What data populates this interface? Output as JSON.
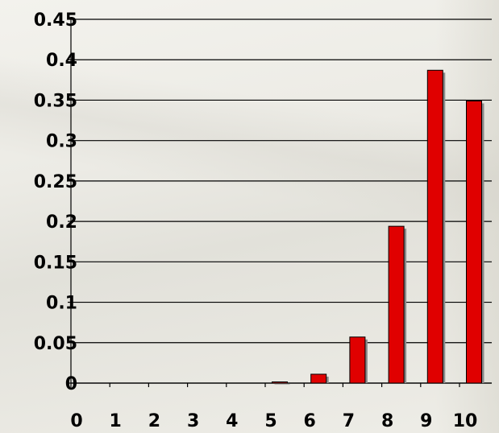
{
  "chart_data": {
    "type": "bar",
    "title": "",
    "xlabel": "",
    "ylabel": "",
    "categories": [
      "0",
      "1",
      "2",
      "3",
      "4",
      "5",
      "6",
      "7",
      "8",
      "9",
      "10"
    ],
    "values": [
      0,
      0,
      0,
      0,
      0,
      0.0015,
      0.011,
      0.057,
      0.194,
      0.387,
      0.349
    ],
    "ylim": [
      0,
      0.45
    ],
    "yticks": [
      0,
      0.05,
      0.1,
      0.15,
      0.2,
      0.25,
      0.3,
      0.35,
      0.4,
      0.45
    ],
    "ytick_labels": [
      "0",
      "0.05",
      "0.1",
      "0.15",
      "0.2",
      "0.25",
      "0.3",
      "0.35",
      "0.4",
      "0.45"
    ],
    "grid": true,
    "legend": "none",
    "bar_color": "#e00000",
    "bar_edge_color": "#000000",
    "shadow_color": "#8a8a8a"
  }
}
